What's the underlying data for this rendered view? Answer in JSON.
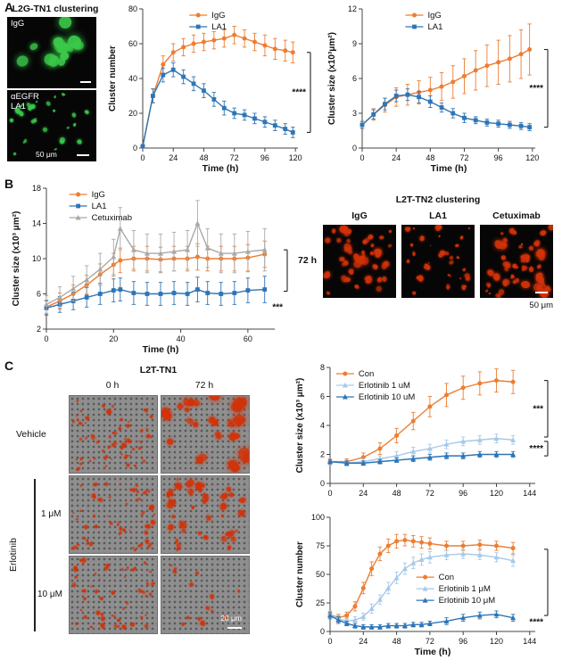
{
  "panelA": {
    "label": "A",
    "microscopy": {
      "title": "L2G-TN1 clustering",
      "image1_label": "IgG",
      "image2_label_line1": "αEGFR",
      "image2_label_line2": "LA1",
      "scale_label": "50 μm",
      "fluor_color": "#3bc94a"
    }
  },
  "panelB": {
    "label": "B",
    "microscopy": {
      "title": "L2T-TN2 clustering",
      "time_label": "72 h",
      "image_labels": [
        "IgG",
        "LA1",
        "Cetuximab"
      ],
      "scale_label": "50 μm",
      "fluor_color": "#d23309"
    }
  },
  "panelC": {
    "label": "C",
    "microscopy": {
      "title": "L2T-TN1",
      "col_labels": [
        "0 h",
        "72 h"
      ],
      "row_labels": [
        "Vehicle",
        "1 μM",
        "10 μM"
      ],
      "group_label": "Erlotinib",
      "scale_label": "20 μm",
      "fluor_color": "#d23309"
    }
  },
  "chart_data": [
    {
      "id": "a-cluster-number",
      "type": "line",
      "xlabel": "Time (h)",
      "ylabel": "Cluster number",
      "xlim": [
        0,
        122
      ],
      "ylim": [
        0,
        80
      ],
      "xticks": [
        0,
        24,
        48,
        72,
        96,
        120
      ],
      "yticks": [
        0,
        20,
        40,
        60,
        80
      ],
      "x": [
        0,
        8,
        16,
        24,
        32,
        40,
        48,
        56,
        64,
        72,
        80,
        88,
        96,
        104,
        112,
        118
      ],
      "series": [
        {
          "name": "IgG",
          "color": "#ED7D31",
          "marker": "circle",
          "values": [
            1,
            30,
            48,
            55,
            58,
            60,
            61,
            62,
            63,
            65,
            63,
            61,
            59,
            57,
            56,
            55
          ],
          "errors": [
            1,
            4,
            5,
            5,
            5,
            5,
            5,
            5,
            5,
            5,
            5,
            5,
            6,
            6,
            6,
            6
          ]
        },
        {
          "name": "LA1",
          "color": "#2E75B6",
          "marker": "square",
          "values": [
            1,
            30,
            42,
            45,
            41,
            37,
            33,
            28,
            23,
            20,
            19,
            17,
            15,
            13,
            11,
            9
          ],
          "errors": [
            1,
            4,
            4,
            4,
            4,
            4,
            4,
            4,
            4,
            3,
            3,
            3,
            3,
            3,
            3,
            3
          ]
        }
      ],
      "legend": {
        "x": 0.3,
        "y": 0.0
      },
      "significance": [
        {
          "label": "****",
          "y1": 55,
          "y2": 9
        }
      ]
    },
    {
      "id": "a-cluster-size",
      "type": "line",
      "xlabel": "Time (h)",
      "ylabel": "Cluster size (x10³μm²)",
      "xlim": [
        0,
        122
      ],
      "ylim": [
        0,
        12
      ],
      "xticks": [
        0,
        24,
        48,
        72,
        96,
        120
      ],
      "yticks": [
        0,
        3,
        6,
        9,
        12
      ],
      "x": [
        0,
        8,
        16,
        24,
        32,
        40,
        48,
        56,
        64,
        72,
        80,
        88,
        96,
        104,
        112,
        118
      ],
      "series": [
        {
          "name": "IgG",
          "color": "#ED7D31",
          "marker": "circle",
          "values": [
            2,
            2.9,
            3.7,
            4.4,
            4.6,
            4.8,
            5,
            5.3,
            5.7,
            6.2,
            6.7,
            7.1,
            7.4,
            7.7,
            8.1,
            8.5
          ],
          "errors": [
            0.3,
            0.5,
            0.6,
            0.8,
            0.9,
            1,
            1.1,
            1.2,
            1.4,
            1.5,
            1.7,
            1.8,
            1.9,
            2,
            2.1,
            2.2
          ]
        },
        {
          "name": "LA1",
          "color": "#2E75B6",
          "marker": "square",
          "values": [
            2,
            2.9,
            3.8,
            4.5,
            4.6,
            4.4,
            4,
            3.5,
            3,
            2.6,
            2.4,
            2.2,
            2.1,
            2,
            1.9,
            1.8
          ],
          "errors": [
            0.3,
            0.4,
            0.5,
            0.5,
            0.5,
            0.5,
            0.5,
            0.4,
            0.4,
            0.4,
            0.3,
            0.3,
            0.3,
            0.3,
            0.3,
            0.3
          ]
        }
      ],
      "legend": {
        "x": 0.25,
        "y": 0.0
      },
      "significance": [
        {
          "label": "****",
          "y1": 8.5,
          "y2": 1.8
        }
      ]
    },
    {
      "id": "b-cluster-size",
      "type": "line",
      "xlabel": "Time (h)",
      "ylabel": "Cluster size (x10³ μm²)",
      "xlim": [
        0,
        68
      ],
      "ylim": [
        2,
        18
      ],
      "xticks": [
        0,
        20,
        40,
        60
      ],
      "yticks": [
        2,
        6,
        10,
        14,
        18
      ],
      "x": [
        0,
        4,
        8,
        12,
        16,
        20,
        22,
        26,
        30,
        34,
        38,
        42,
        45,
        48,
        52,
        56,
        60,
        65
      ],
      "series": [
        {
          "name": "IgG",
          "color": "#ED7D31",
          "marker": "circle",
          "values": [
            4.5,
            5.2,
            6,
            7,
            8.2,
            9.3,
            9.8,
            10,
            10,
            9.9,
            10,
            10,
            10.2,
            10,
            10,
            10,
            10.1,
            10.5
          ],
          "errors": [
            0.8,
            0.9,
            1,
            1.1,
            1.2,
            1.3,
            1.4,
            1.4,
            1.4,
            1.4,
            1.4,
            1.4,
            1.5,
            1.4,
            1.4,
            1.4,
            1.5,
            1.5
          ]
        },
        {
          "name": "LA1",
          "color": "#2E75B6",
          "marker": "square",
          "values": [
            4.4,
            4.8,
            5.2,
            5.6,
            6,
            6.4,
            6.5,
            6.1,
            6,
            6,
            6.1,
            6,
            6.5,
            6.1,
            6,
            6.1,
            6.4,
            6.5
          ],
          "errors": [
            0.8,
            0.9,
            1,
            1.1,
            1.2,
            1.3,
            1.3,
            1.3,
            1.3,
            1.3,
            1.3,
            1.3,
            1.4,
            1.3,
            1.3,
            1.3,
            1.4,
            1.5
          ]
        },
        {
          "name": "Cetuximab",
          "color": "#A9A9A9",
          "marker": "triangle",
          "values": [
            4.8,
            5.6,
            6.6,
            7.6,
            8.8,
            10.2,
            13.4,
            11,
            10.6,
            10.6,
            10.8,
            11,
            14,
            11.2,
            10.6,
            10.6,
            10.8,
            11
          ],
          "errors": [
            1,
            1.2,
            1.4,
            1.6,
            1.8,
            2,
            2.4,
            2.2,
            2.2,
            2.2,
            2.2,
            2.2,
            2.6,
            2.2,
            2.2,
            2.2,
            2.3,
            2.4
          ]
        }
      ],
      "legend": {
        "x": 0.1,
        "y": 0.0
      },
      "significance": [
        {
          "label": "***",
          "y1": 11,
          "y2": 6.3,
          "label_y": 4.2
        }
      ]
    },
    {
      "id": "c-cluster-size",
      "type": "line",
      "xlabel": "",
      "ylabel": "Cluster size (x10³ μm²)",
      "xlim": [
        0,
        148
      ],
      "ylim": [
        0,
        8
      ],
      "xticks": [
        0,
        24,
        48,
        72,
        96,
        120,
        144
      ],
      "yticks": [
        0,
        2,
        4,
        6,
        8
      ],
      "x": [
        0,
        12,
        24,
        36,
        48,
        60,
        72,
        84,
        96,
        108,
        120,
        132
      ],
      "series": [
        {
          "name": "Con",
          "color": "#ED7D31",
          "marker": "circle",
          "values": [
            1.5,
            1.5,
            1.8,
            2.4,
            3.3,
            4.3,
            5.3,
            6.1,
            6.6,
            6.9,
            7.1,
            7
          ],
          "errors": [
            0.2,
            0.2,
            0.3,
            0.4,
            0.5,
            0.6,
            0.7,
            0.8,
            0.8,
            0.8,
            0.8,
            0.8
          ]
        },
        {
          "name": "Erlotinib 1 uM",
          "color": "#A6C9E8",
          "marker": "triangle",
          "values": [
            1.5,
            1.4,
            1.5,
            1.7,
            1.9,
            2.2,
            2.4,
            2.7,
            2.9,
            3,
            3.1,
            3
          ],
          "errors": [
            0.2,
            0.2,
            0.2,
            0.2,
            0.3,
            0.3,
            0.3,
            0.3,
            0.3,
            0.3,
            0.3,
            0.3
          ]
        },
        {
          "name": "Erlotinib 10 uM",
          "color": "#2E75B6",
          "marker": "triangle",
          "values": [
            1.5,
            1.4,
            1.4,
            1.5,
            1.6,
            1.7,
            1.8,
            1.9,
            1.9,
            2,
            2,
            2
          ],
          "errors": [
            0.15,
            0.15,
            0.15,
            0.15,
            0.15,
            0.2,
            0.2,
            0.2,
            0.2,
            0.2,
            0.2,
            0.2
          ]
        }
      ],
      "legend": {
        "x": 0.03,
        "y": 0.0
      },
      "significance": [
        {
          "label": "***",
          "y1": 7.1,
          "y2": 3.2
        },
        {
          "label": "****",
          "y1": 2.9,
          "y2": 1.9
        }
      ]
    },
    {
      "id": "c-cluster-number",
      "type": "line",
      "xlabel": "Time (h)",
      "ylabel": "Cluster number",
      "xlim": [
        0,
        148
      ],
      "ylim": [
        0,
        100
      ],
      "xticks": [
        0,
        24,
        48,
        72,
        96,
        120,
        144
      ],
      "yticks": [
        0,
        25,
        50,
        75,
        100
      ],
      "x": [
        0,
        6,
        12,
        18,
        24,
        30,
        36,
        42,
        48,
        54,
        60,
        66,
        72,
        84,
        96,
        108,
        120,
        132
      ],
      "series": [
        {
          "name": "Con",
          "color": "#ED7D31",
          "marker": "circle",
          "values": [
            15,
            12,
            14,
            22,
            38,
            55,
            68,
            75,
            79,
            80,
            79,
            78,
            77,
            75,
            75,
            76,
            75,
            73
          ],
          "errors": [
            3,
            3,
            3,
            4,
            5,
            6,
            6,
            6,
            6,
            5,
            5,
            5,
            5,
            4,
            4,
            4,
            4,
            5
          ]
        },
        {
          "name": "Erlotinib 1 μM",
          "color": "#A6C9E8",
          "marker": "triangle",
          "values": [
            15,
            11,
            9,
            10,
            13,
            20,
            28,
            38,
            47,
            55,
            60,
            63,
            65,
            67,
            68,
            67,
            65,
            62
          ],
          "errors": [
            3,
            3,
            3,
            3,
            3,
            4,
            4,
            5,
            5,
            5,
            5,
            5,
            5,
            4,
            4,
            4,
            4,
            5
          ]
        },
        {
          "name": "Erlotinib 10 μM",
          "color": "#2E75B6",
          "marker": "triangle",
          "values": [
            14,
            10,
            7,
            5,
            4,
            4,
            4,
            5,
            5,
            5,
            6,
            6,
            7,
            9,
            12,
            14,
            15,
            12
          ],
          "errors": [
            3,
            3,
            2,
            2,
            2,
            2,
            2,
            2,
            2,
            2,
            2,
            2,
            2,
            3,
            3,
            3,
            3,
            3
          ]
        }
      ],
      "legend": {
        "x": 0.42,
        "y": 0.47
      },
      "significance": [
        {
          "label": "****",
          "y1": 72,
          "y2": 14,
          "label_y": 6
        }
      ]
    }
  ]
}
